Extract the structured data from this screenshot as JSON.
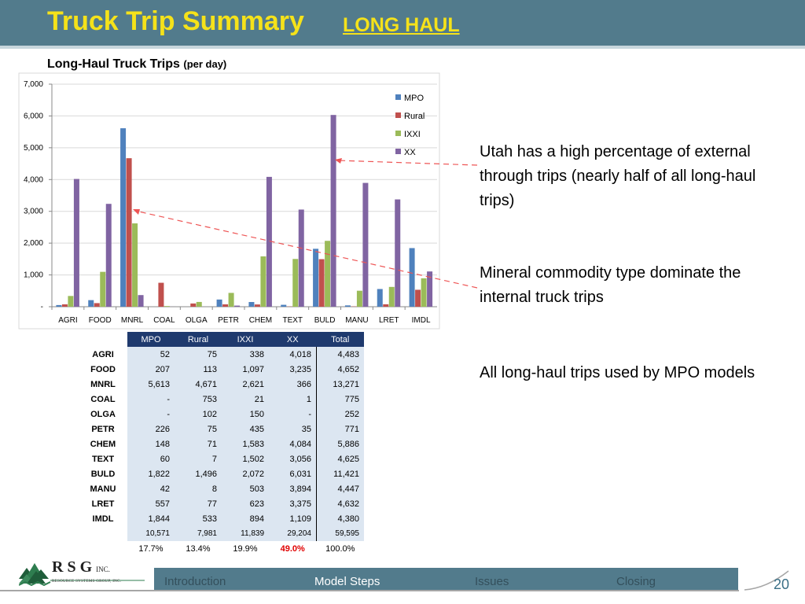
{
  "header": {
    "title": "Truck Trip Summary",
    "subtitle": "LONG HAUL"
  },
  "subtitle": {
    "main": "Long-Haul Truck Trips",
    "small": "(per day)"
  },
  "colors": {
    "header_bg": "#527b8c",
    "title": "#f5e21a",
    "MPO": "#4f81bd",
    "Rural": "#c0504d",
    "IXXI": "#9bbb59",
    "XX": "#8064a2",
    "table_header": "#1f3a6e",
    "highlight": "#e00000"
  },
  "chart_data": {
    "type": "bar",
    "categories": [
      "AGRI",
      "FOOD",
      "MNRL",
      "COAL",
      "OLGA",
      "PETR",
      "CHEM",
      "TEXT",
      "BULD",
      "MANU",
      "LRET",
      "IMDL"
    ],
    "series": [
      {
        "name": "MPO",
        "values": [
          52,
          207,
          5613,
          0,
          0,
          226,
          148,
          60,
          1822,
          42,
          557,
          1844
        ]
      },
      {
        "name": "Rural",
        "values": [
          75,
          113,
          4671,
          753,
          102,
          75,
          71,
          7,
          1496,
          8,
          77,
          533
        ]
      },
      {
        "name": "IXXI",
        "values": [
          338,
          1097,
          2621,
          21,
          150,
          435,
          1583,
          1502,
          2072,
          503,
          623,
          894
        ]
      },
      {
        "name": "XX",
        "values": [
          4018,
          3235,
          366,
          1,
          0,
          35,
          4084,
          3056,
          6031,
          3894,
          3375,
          1109
        ]
      }
    ],
    "ylim": [
      0,
      7000
    ],
    "yticks": [
      "-",
      "1,000",
      "2,000",
      "3,000",
      "4,000",
      "5,000",
      "6,000",
      "7,000"
    ],
    "ytick_values": [
      0,
      1000,
      2000,
      3000,
      4000,
      5000,
      6000,
      7000
    ],
    "grid": true,
    "legend": "top-right"
  },
  "table": {
    "columns": [
      "MPO",
      "Rural",
      "IXXI",
      "XX",
      "Total"
    ],
    "rows": [
      {
        "name": "AGRI",
        "values": [
          "52",
          "75",
          "338",
          "4,018",
          "4,483"
        ]
      },
      {
        "name": "FOOD",
        "values": [
          "207",
          "113",
          "1,097",
          "3,235",
          "4,652"
        ]
      },
      {
        "name": "MNRL",
        "values": [
          "5,613",
          "4,671",
          "2,621",
          "366",
          "13,271"
        ]
      },
      {
        "name": "COAL",
        "values": [
          "-",
          "753",
          "21",
          "1",
          "775"
        ]
      },
      {
        "name": "OLGA",
        "values": [
          "-",
          "102",
          "150",
          "-",
          "252"
        ]
      },
      {
        "name": "PETR",
        "values": [
          "226",
          "75",
          "435",
          "35",
          "771"
        ]
      },
      {
        "name": "CHEM",
        "values": [
          "148",
          "71",
          "1,583",
          "4,084",
          "5,886"
        ]
      },
      {
        "name": "TEXT",
        "values": [
          "60",
          "7",
          "1,502",
          "3,056",
          "4,625"
        ]
      },
      {
        "name": "BULD",
        "values": [
          "1,822",
          "1,496",
          "2,072",
          "6,031",
          "11,421"
        ]
      },
      {
        "name": "MANU",
        "values": [
          "42",
          "8",
          "503",
          "3,894",
          "4,447"
        ]
      },
      {
        "name": "LRET",
        "values": [
          "557",
          "77",
          "623",
          "3,375",
          "4,632"
        ]
      },
      {
        "name": "IMDL",
        "values": [
          "1,844",
          "533",
          "894",
          "1,109",
          "4,380"
        ]
      }
    ],
    "totals": [
      "10,571",
      "7,981",
      "11,839",
      "29,204",
      "59,595"
    ],
    "percents": [
      "17.7%",
      "13.4%",
      "19.9%",
      "49.0%",
      "100.0%"
    ]
  },
  "callouts": [
    "Utah has a high percentage of external through trips (nearly half of all long-haul trips)",
    "Mineral commodity type dominate the internal truck trips",
    "All long-haul trips used by MPO models"
  ],
  "footer": {
    "logo_letters": "R S G",
    "logo_inc": "INC.",
    "logo_sub": "RESOURCE SYSTEMS GROUP, INC.",
    "nav": [
      "Introduction",
      "Model Steps",
      "Issues",
      "Closing"
    ],
    "active_nav": "Model Steps",
    "page_number": "20"
  }
}
